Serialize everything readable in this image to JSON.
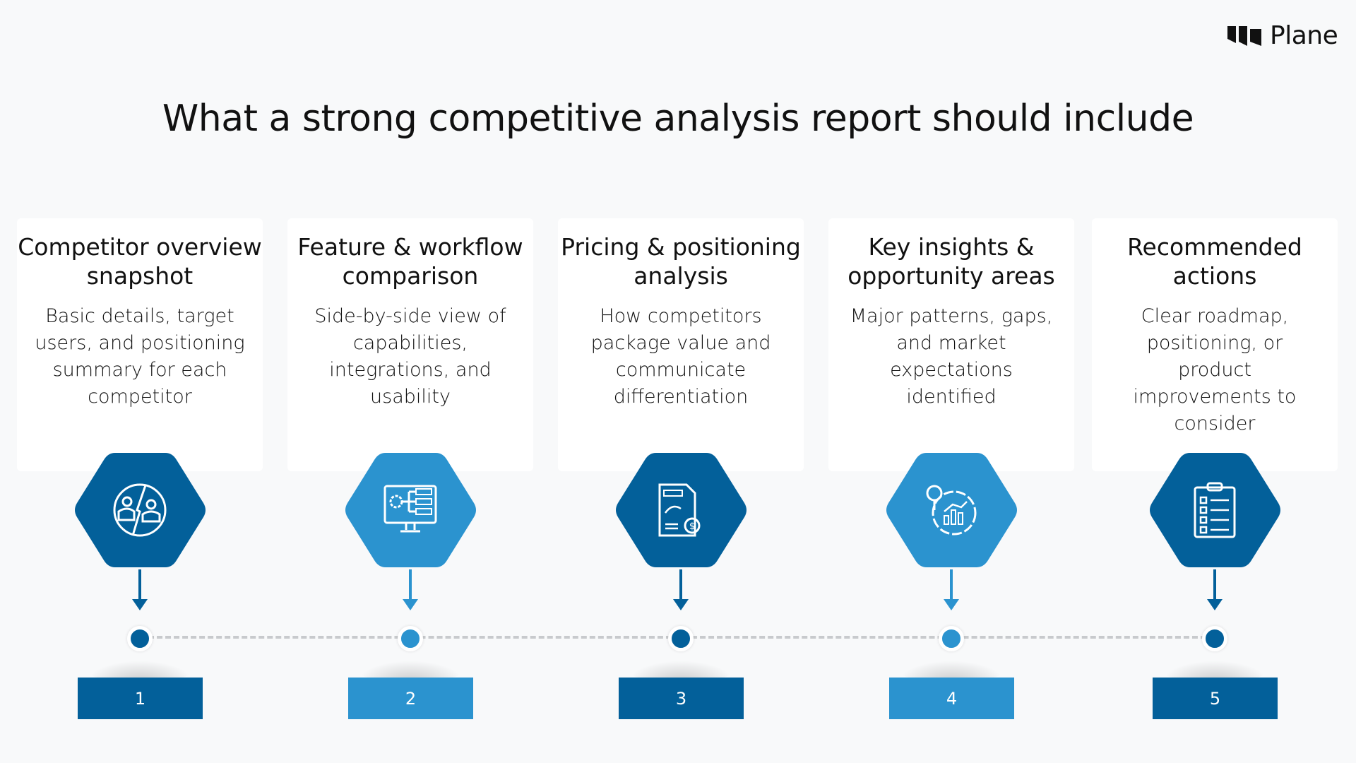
{
  "brand": {
    "name": "Plane",
    "icon": "plane-logo-icon"
  },
  "title": "What a strong competitive analysis report should include",
  "colors": {
    "dark": "#03609a",
    "light": "#2b93cf",
    "background": "#f8f9fa",
    "dash": "#c8cacd"
  },
  "steps": [
    {
      "number": "1",
      "heading": "Competitor overview snapshot",
      "body": "Basic details, target users, and positioning summary for each competitor",
      "icon": "competitors-comparison-icon",
      "tone": "dark"
    },
    {
      "number": "2",
      "heading": "Feature & workflow comparison",
      "body": "Side-by-side view of capabilities, integrations, and usability",
      "icon": "monitor-workflow-icon",
      "tone": "light"
    },
    {
      "number": "3",
      "heading": "Pricing & positioning analysis",
      "body": "How competitors package value and communicate differentiation",
      "icon": "pricing-document-icon",
      "tone": "dark"
    },
    {
      "number": "4",
      "heading": "Key insights & opportunity areas",
      "body": "Major patterns, gaps, and market expectations identified",
      "icon": "insights-chart-icon",
      "tone": "light"
    },
    {
      "number": "5",
      "heading": "Recommended actions",
      "body": "Clear roadmap, positioning, or product improvements to consider",
      "icon": "clipboard-checklist-icon",
      "tone": "dark"
    }
  ]
}
